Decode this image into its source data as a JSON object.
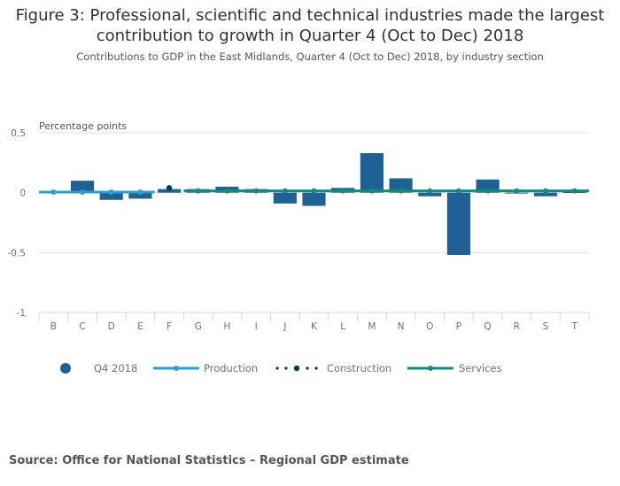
{
  "header": {
    "title_line1": "Figure 3: Professional, scientific and technical industries made the largest",
    "title_line2": "contribution to growth in Quarter 4 (Oct to Dec) 2018",
    "subtitle": "Contributions to GDP in the East Midlands, Quarter 4 (Oct to Dec) 2018, by industry section"
  },
  "source": "Source: Office for National Statistics – Regional GDP estimate",
  "colors": {
    "bars": "#206095",
    "production": "#27a0cc",
    "construction": "#003c57",
    "services": "#118c7b",
    "grid": "#e0e0e0",
    "axis": "#ccd8e8"
  },
  "chart_data": {
    "type": "bar",
    "title": "Figure 3: Professional, scientific and technical industries made the largest contribution to growth in Quarter 4 (Oct to Dec) 2018",
    "subtitle": "Contributions to GDP in the East Midlands, Quarter 4 (Oct to Dec) 2018, by industry section",
    "xlabel": "",
    "ylabel": "Percentage points",
    "ylim": [
      -1,
      0.5
    ],
    "yticks": [
      0.5,
      0,
      -0.5,
      -1
    ],
    "ytick_labels": [
      "0.5",
      "0",
      "-0.5",
      "-1"
    ],
    "grid": true,
    "legend_position": "bottom",
    "categories": [
      "B",
      "C",
      "D",
      "E",
      "F",
      "G",
      "H",
      "I",
      "J",
      "K",
      "L",
      "M",
      "N",
      "O",
      "P",
      "Q",
      "R",
      "S",
      "T"
    ],
    "series": [
      {
        "name": "Q4 2018",
        "kind": "bar",
        "values": [
          0.005,
          0.1,
          -0.06,
          -0.05,
          0.03,
          0.03,
          0.05,
          0.03,
          -0.09,
          -0.11,
          0.04,
          0.33,
          0.12,
          -0.03,
          -0.52,
          0.11,
          0.0,
          -0.03,
          0.005
        ]
      },
      {
        "name": "Production",
        "kind": "line",
        "categories": [
          "B",
          "C",
          "D",
          "E"
        ],
        "values": [
          0.005,
          0.005,
          0.005,
          0.005
        ]
      },
      {
        "name": "Construction",
        "kind": "dot",
        "categories": [
          "F"
        ],
        "values": [
          0.04
        ]
      },
      {
        "name": "Services",
        "kind": "line",
        "categories": [
          "G",
          "H",
          "I",
          "J",
          "K",
          "L",
          "M",
          "N",
          "O",
          "P",
          "Q",
          "R",
          "S",
          "T"
        ],
        "values": [
          0.015,
          0.015,
          0.015,
          0.015,
          0.015,
          0.015,
          0.015,
          0.015,
          0.015,
          0.015,
          0.015,
          0.015,
          0.015,
          0.015
        ]
      }
    ]
  }
}
